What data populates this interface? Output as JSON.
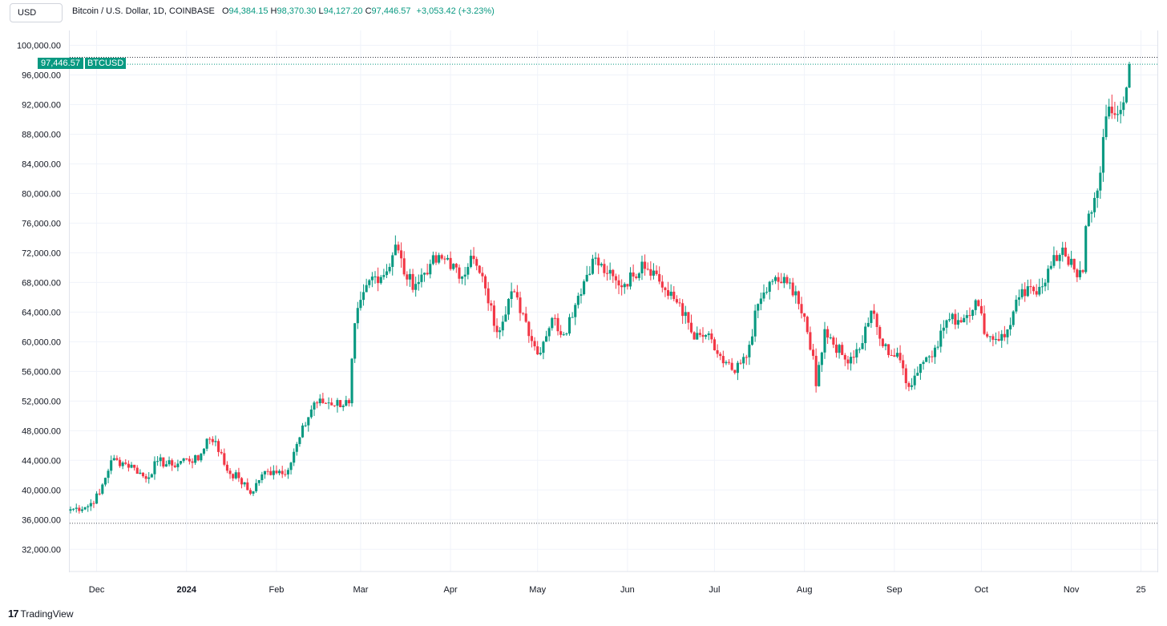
{
  "header": {
    "currency_label": "USD",
    "title": "Bitcoin / U.S. Dollar, 1D, COINBASE",
    "open_key": "O",
    "open": "94,384.15",
    "high_key": "H",
    "high": "98,370.30",
    "low_key": "L",
    "low": "94,127.20",
    "close_key": "C",
    "close": "97,446.57",
    "change": "+3,053.42 (+3.23%)"
  },
  "price_tag": {
    "price": "97,446.57",
    "symbol": "BTCUSD"
  },
  "brand": {
    "logo": "17",
    "name": "TradingView"
  },
  "colors": {
    "up": "#089981",
    "down": "#f23645",
    "grid": "#f0f3fa"
  },
  "chart_data": {
    "type": "candlestick",
    "y_ticks": [
      "100,000.00",
      "96,000.00",
      "92,000.00",
      "88,000.00",
      "84,000.00",
      "80,000.00",
      "76,000.00",
      "72,000.00",
      "68,000.00",
      "64,000.00",
      "60,000.00",
      "56,000.00",
      "52,000.00",
      "48,000.00",
      "44,000.00",
      "40,000.00",
      "36,000.00",
      "32,000.00"
    ],
    "ylim": [
      29000,
      102000
    ],
    "x_ticks": [
      {
        "label": "Dec",
        "date": "2023-12-01"
      },
      {
        "label": "2024",
        "date": "2024-01-01",
        "bold": true
      },
      {
        "label": "Feb",
        "date": "2024-02-01"
      },
      {
        "label": "Mar",
        "date": "2024-03-01"
      },
      {
        "label": "Apr",
        "date": "2024-04-01"
      },
      {
        "label": "May",
        "date": "2024-05-01"
      },
      {
        "label": "Jun",
        "date": "2024-06-01"
      },
      {
        "label": "Jul",
        "date": "2024-07-01"
      },
      {
        "label": "Aug",
        "date": "2024-08-01"
      },
      {
        "label": "Sep",
        "date": "2024-09-01"
      },
      {
        "label": "Oct",
        "date": "2024-10-01"
      },
      {
        "label": "Nov",
        "date": "2024-11-01"
      },
      {
        "label": "25",
        "date": "2024-11-25"
      }
    ],
    "range": {
      "start": "2023-11-22",
      "end": "2024-11-21"
    },
    "last_price": 97446.57,
    "low_line": 35500,
    "close_anchors": [
      [
        "2023-11-22",
        37400
      ],
      [
        "2023-11-28",
        37800
      ],
      [
        "2023-12-02",
        39500
      ],
      [
        "2023-12-06",
        44000
      ],
      [
        "2023-12-10",
        43700
      ],
      [
        "2023-12-14",
        43000
      ],
      [
        "2023-12-18",
        41500
      ],
      [
        "2023-12-22",
        43900
      ],
      [
        "2023-12-27",
        43300
      ],
      [
        "2024-01-01",
        44200
      ],
      [
        "2024-01-05",
        44000
      ],
      [
        "2024-01-08",
        46900
      ],
      [
        "2024-01-11",
        46600
      ],
      [
        "2024-01-15",
        42600
      ],
      [
        "2024-01-19",
        41600
      ],
      [
        "2024-01-23",
        39500
      ],
      [
        "2024-01-27",
        42100
      ],
      [
        "2024-01-31",
        42600
      ],
      [
        "2024-02-05",
        42700
      ],
      [
        "2024-02-09",
        47100
      ],
      [
        "2024-02-14",
        51800
      ],
      [
        "2024-02-19",
        51800
      ],
      [
        "2024-02-26",
        51700
      ],
      [
        "2024-02-28",
        62500
      ],
      [
        "2024-03-04",
        68300
      ],
      [
        "2024-03-10",
        69500
      ],
      [
        "2024-03-13",
        73100
      ],
      [
        "2024-03-17",
        68400
      ],
      [
        "2024-03-20",
        67800
      ],
      [
        "2024-03-25",
        70500
      ],
      [
        "2024-03-31",
        71300
      ],
      [
        "2024-04-04",
        68500
      ],
      [
        "2024-04-08",
        71600
      ],
      [
        "2024-04-13",
        67200
      ],
      [
        "2024-04-17",
        61300
      ],
      [
        "2024-04-22",
        66800
      ],
      [
        "2024-04-26",
        63800
      ],
      [
        "2024-05-01",
        58300
      ],
      [
        "2024-05-06",
        63200
      ],
      [
        "2024-05-10",
        61000
      ],
      [
        "2024-05-15",
        66200
      ],
      [
        "2024-05-20",
        71200
      ],
      [
        "2024-05-25",
        69200
      ],
      [
        "2024-05-29",
        67600
      ],
      [
        "2024-06-03",
        68800
      ],
      [
        "2024-06-06",
        70800
      ],
      [
        "2024-06-10",
        69600
      ],
      [
        "2024-06-15",
        66200
      ],
      [
        "2024-06-19",
        65200
      ],
      [
        "2024-06-24",
        60300
      ],
      [
        "2024-06-28",
        60900
      ],
      [
        "2024-07-04",
        57100
      ],
      [
        "2024-07-08",
        55800
      ],
      [
        "2024-07-12",
        57900
      ],
      [
        "2024-07-16",
        65100
      ],
      [
        "2024-07-21",
        68200
      ],
      [
        "2024-07-26",
        67900
      ],
      [
        "2024-07-29",
        66800
      ],
      [
        "2024-08-04",
        58100
      ],
      [
        "2024-08-05",
        54000
      ],
      [
        "2024-08-08",
        61700
      ],
      [
        "2024-08-15",
        57600
      ],
      [
        "2024-08-20",
        59000
      ],
      [
        "2024-08-24",
        64200
      ],
      [
        "2024-08-28",
        59400
      ],
      [
        "2024-09-03",
        57500
      ],
      [
        "2024-09-06",
        53900
      ],
      [
        "2024-09-10",
        57000
      ],
      [
        "2024-09-15",
        59200
      ],
      [
        "2024-09-19",
        62900
      ],
      [
        "2024-09-25",
        63200
      ],
      [
        "2024-09-29",
        65600
      ],
      [
        "2024-10-03",
        60700
      ],
      [
        "2024-10-09",
        60600
      ],
      [
        "2024-10-14",
        66000
      ],
      [
        "2024-10-21",
        67400
      ],
      [
        "2024-10-29",
        72700
      ],
      [
        "2024-11-03",
        68700
      ],
      [
        "2024-11-05",
        69400
      ],
      [
        "2024-11-06",
        75600
      ],
      [
        "2024-11-10",
        80400
      ],
      [
        "2024-11-13",
        90400
      ],
      [
        "2024-11-16",
        90600
      ],
      [
        "2024-11-19",
        92300
      ],
      [
        "2024-11-20",
        94300
      ],
      [
        "2024-11-21",
        97446
      ]
    ]
  }
}
